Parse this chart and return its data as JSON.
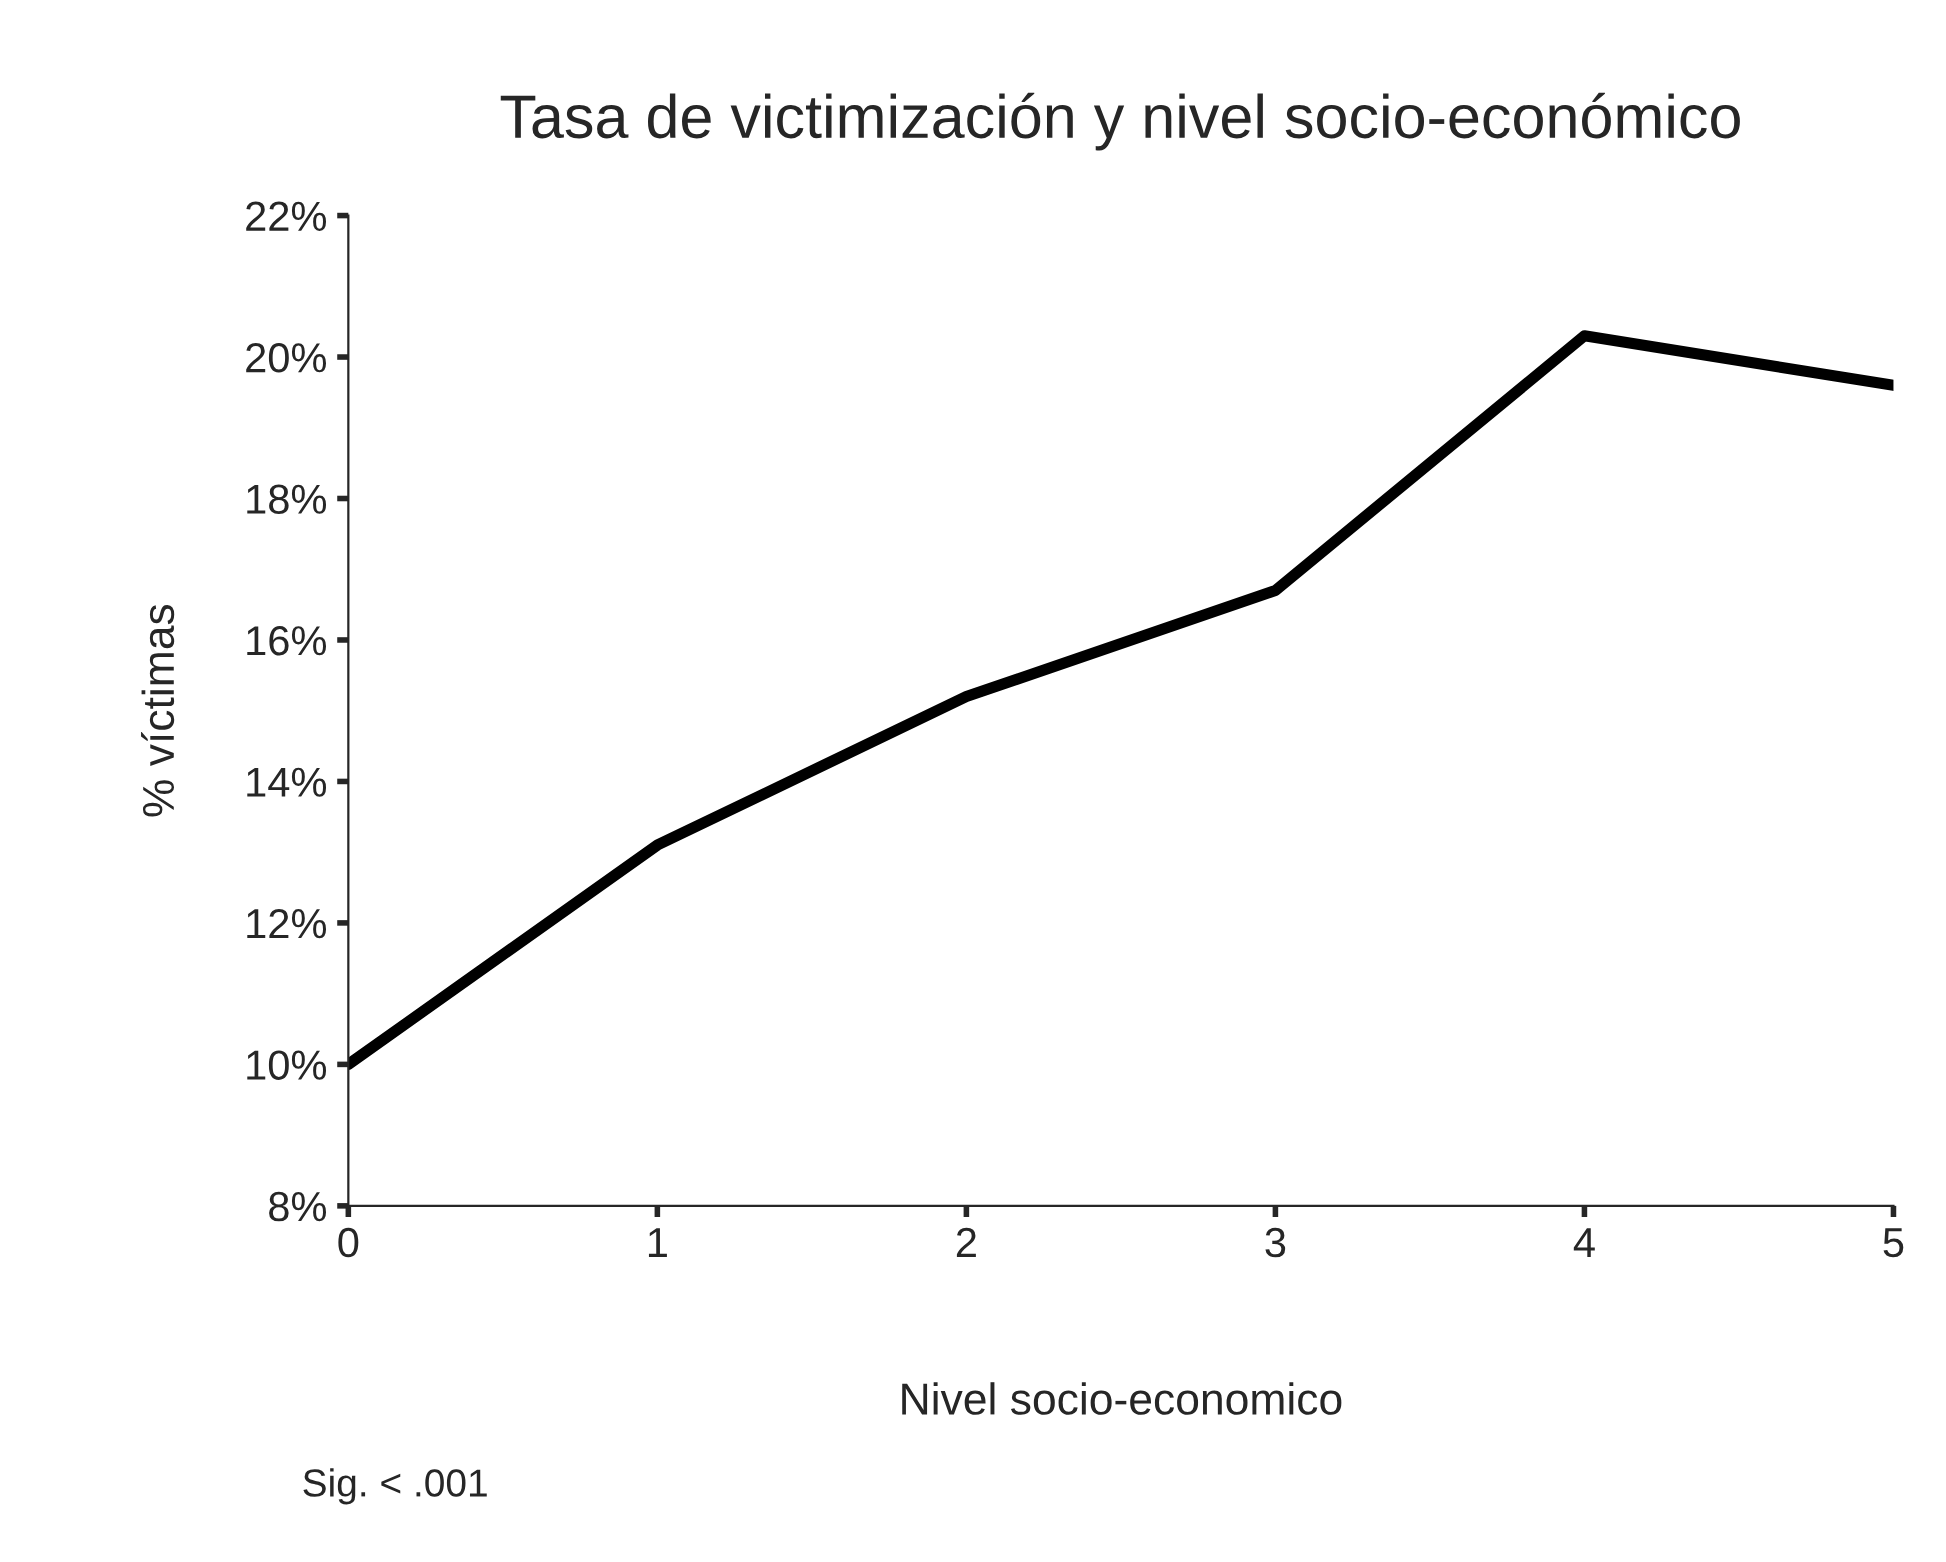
{
  "chart_data": {
    "type": "line",
    "title": "Tasa de victimización y nivel socio-económico",
    "xlabel": "Nivel socio-economico",
    "ylabel": "% víctimas",
    "x": [
      0,
      1,
      2,
      3,
      4,
      5
    ],
    "series": [
      {
        "color": "#000000",
        "values": [
          10.0,
          13.1,
          15.2,
          16.7,
          20.3,
          19.6
        ]
      }
    ],
    "xlim": [
      0,
      5
    ],
    "xticks": [
      0,
      1,
      2,
      3,
      4,
      5
    ],
    "ylim": [
      8,
      22
    ],
    "yticks": [
      {
        "value": 8,
        "label": "8%"
      },
      {
        "value": 10,
        "label": "10%"
      },
      {
        "value": 12,
        "label": "12%"
      },
      {
        "value": 14,
        "label": "14%"
      },
      {
        "value": 16,
        "label": "16%"
      },
      {
        "value": 18,
        "label": "18%"
      },
      {
        "value": 20,
        "label": "20%"
      },
      {
        "value": 22,
        "label": "22%"
      }
    ],
    "grid": false,
    "legend": false,
    "marker": "none",
    "line_style": "solid",
    "annotations": [
      "Sig. < .001"
    ]
  }
}
